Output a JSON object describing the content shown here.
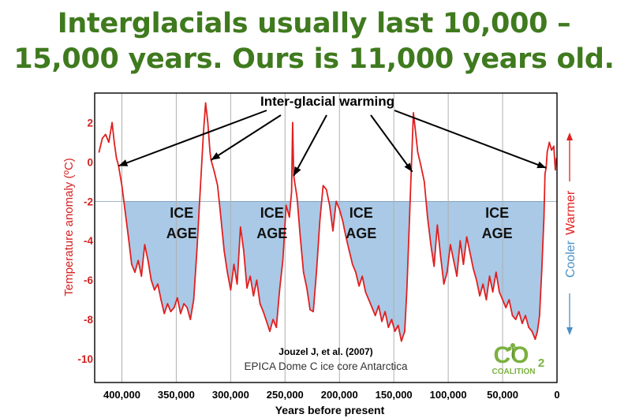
{
  "headline": {
    "line1": "Interglacials usually last 10,000 –",
    "line2": "15,000 years. Ours is 11,000 years old."
  },
  "colors": {
    "headline": "#3f7a1e",
    "series": "#e02020",
    "ice_fill": "#a9c9e6",
    "warmer_label": "#e02020",
    "cooler_label": "#4a90c4",
    "axis_labels": "#d42020",
    "logo_green": "#7ab040"
  },
  "annotations": {
    "warming": "Inter-glacial warming",
    "ice_age": [
      "ICE",
      "AGE"
    ],
    "citation": "Jouzel J, et al. (2007)",
    "source": "EPICA Dome C ice core Antarctica",
    "warmer": "Warmer",
    "cooler": "Cooler"
  },
  "logo": {
    "main": "CO",
    "sub": "2",
    "word": "COALITION"
  },
  "chart_data": {
    "type": "line",
    "title": "",
    "xlabel": "Years before present",
    "ylabel": "Temperature anomaly (ºC)",
    "xlim": [
      425000,
      0
    ],
    "ylim": [
      -11.2,
      3.5
    ],
    "x_ticks": [
      400000,
      350000,
      300000,
      250000,
      200000,
      150000,
      100000,
      50000,
      0
    ],
    "x_tick_labels": [
      "400,000",
      "350,000",
      "300,000",
      "250,000",
      "200,000",
      "150,000",
      "100,000",
      "50,000",
      "0"
    ],
    "y_ticks": [
      2,
      0,
      -2,
      -4,
      -6,
      -8,
      -10
    ],
    "y_tick_labels": [
      "2",
      "0",
      "-2",
      "-4",
      "-6",
      "-8",
      "-10"
    ],
    "grid": "vertical",
    "ice_age_threshold": -2,
    "ice_age_label_positions": [
      345000,
      262000,
      180000,
      55000
    ],
    "arrow_targets": [
      [
        403000,
        -0.2
      ],
      [
        318000,
        0.1
      ],
      [
        242000,
        -0.7
      ],
      [
        133000,
        -0.5
      ],
      [
        10000,
        -0.3
      ]
    ],
    "series": [
      {
        "values": [
          [
            421000,
            0.5
          ],
          [
            418000,
            1.2
          ],
          [
            415000,
            1.4
          ],
          [
            412000,
            1.0
          ],
          [
            409000,
            2.0
          ],
          [
            407000,
            1.0
          ],
          [
            405000,
            0.2
          ],
          [
            403000,
            -0.2
          ],
          [
            400000,
            -1.2
          ],
          [
            397000,
            -2.5
          ],
          [
            394000,
            -3.8
          ],
          [
            391000,
            -5.2
          ],
          [
            388000,
            -5.6
          ],
          [
            385000,
            -5.0
          ],
          [
            382000,
            -5.8
          ],
          [
            379000,
            -4.2
          ],
          [
            376000,
            -5.0
          ],
          [
            373000,
            -6.0
          ],
          [
            370000,
            -6.5
          ],
          [
            367000,
            -6.2
          ],
          [
            364000,
            -7.0
          ],
          [
            361000,
            -7.7
          ],
          [
            358000,
            -7.2
          ],
          [
            355000,
            -7.6
          ],
          [
            352000,
            -7.4
          ],
          [
            349000,
            -6.9
          ],
          [
            346000,
            -7.7
          ],
          [
            343000,
            -7.2
          ],
          [
            340000,
            -7.4
          ],
          [
            337000,
            -8.0
          ],
          [
            334000,
            -7.0
          ],
          [
            331000,
            -4.5
          ],
          [
            328000,
            -1.5
          ],
          [
            325000,
            1.5
          ],
          [
            323000,
            3.0
          ],
          [
            321000,
            2.0
          ],
          [
            319000,
            0.5
          ],
          [
            318000,
            0.1
          ],
          [
            315000,
            -0.5
          ],
          [
            312000,
            -1.2
          ],
          [
            309000,
            -2.8
          ],
          [
            306000,
            -4.5
          ],
          [
            303000,
            -5.6
          ],
          [
            300000,
            -6.5
          ],
          [
            297000,
            -5.2
          ],
          [
            294000,
            -6.2
          ],
          [
            291000,
            -3.3
          ],
          [
            288000,
            -4.5
          ],
          [
            285000,
            -6.4
          ],
          [
            282000,
            -5.8
          ],
          [
            279000,
            -6.8
          ],
          [
            276000,
            -6.0
          ],
          [
            273000,
            -7.2
          ],
          [
            270000,
            -7.6
          ],
          [
            267000,
            -8.1
          ],
          [
            264000,
            -8.6
          ],
          [
            261000,
            -8.0
          ],
          [
            258000,
            -8.4
          ],
          [
            255000,
            -6.5
          ],
          [
            252000,
            -5.0
          ],
          [
            249000,
            -2.2
          ],
          [
            246000,
            -2.8
          ],
          [
            244000,
            -1.5
          ],
          [
            243000,
            2.0
          ],
          [
            242000,
            -0.7
          ],
          [
            239000,
            -1.8
          ],
          [
            236000,
            -3.8
          ],
          [
            233000,
            -5.6
          ],
          [
            230000,
            -6.4
          ],
          [
            227000,
            -7.5
          ],
          [
            224000,
            -7.6
          ],
          [
            221000,
            -5.5
          ],
          [
            218000,
            -3.0
          ],
          [
            215000,
            -1.2
          ],
          [
            212000,
            -1.4
          ],
          [
            209000,
            -2.2
          ],
          [
            206000,
            -3.5
          ],
          [
            203000,
            -2.0
          ],
          [
            200000,
            -2.4
          ],
          [
            197000,
            -3.0
          ],
          [
            194000,
            -3.8
          ],
          [
            191000,
            -4.5
          ],
          [
            188000,
            -5.2
          ],
          [
            185000,
            -5.6
          ],
          [
            182000,
            -6.3
          ],
          [
            179000,
            -5.8
          ],
          [
            176000,
            -6.6
          ],
          [
            173000,
            -7.0
          ],
          [
            170000,
            -7.4
          ],
          [
            167000,
            -7.8
          ],
          [
            164000,
            -7.3
          ],
          [
            161000,
            -8.1
          ],
          [
            158000,
            -7.6
          ],
          [
            155000,
            -8.4
          ],
          [
            152000,
            -8.0
          ],
          [
            149000,
            -8.6
          ],
          [
            146000,
            -8.3
          ],
          [
            143000,
            -9.1
          ],
          [
            140000,
            -8.6
          ],
          [
            138000,
            -6.5
          ],
          [
            136000,
            -3.5
          ],
          [
            134000,
            -0.5
          ],
          [
            132000,
            2.5
          ],
          [
            130000,
            1.5
          ],
          [
            128000,
            0.5
          ],
          [
            125000,
            -0.2
          ],
          [
            122000,
            -1.0
          ],
          [
            119000,
            -2.8
          ],
          [
            116000,
            -4.2
          ],
          [
            113000,
            -5.3
          ],
          [
            110000,
            -3.2
          ],
          [
            107000,
            -4.8
          ],
          [
            104000,
            -6.2
          ],
          [
            101000,
            -5.6
          ],
          [
            98000,
            -4.2
          ],
          [
            95000,
            -5.0
          ],
          [
            92000,
            -5.8
          ],
          [
            89000,
            -4.0
          ],
          [
            86000,
            -5.2
          ],
          [
            83000,
            -3.8
          ],
          [
            80000,
            -4.6
          ],
          [
            77000,
            -5.4
          ],
          [
            74000,
            -6.0
          ],
          [
            71000,
            -6.8
          ],
          [
            68000,
            -6.2
          ],
          [
            65000,
            -7.0
          ],
          [
            62000,
            -5.8
          ],
          [
            59000,
            -6.6
          ],
          [
            56000,
            -5.6
          ],
          [
            53000,
            -6.6
          ],
          [
            50000,
            -7.0
          ],
          [
            47000,
            -7.4
          ],
          [
            44000,
            -7.0
          ],
          [
            41000,
            -7.8
          ],
          [
            38000,
            -8.0
          ],
          [
            35000,
            -7.6
          ],
          [
            32000,
            -8.2
          ],
          [
            29000,
            -7.8
          ],
          [
            26000,
            -8.4
          ],
          [
            23000,
            -8.6
          ],
          [
            20000,
            -9.0
          ],
          [
            18000,
            -8.6
          ],
          [
            16000,
            -7.8
          ],
          [
            14000,
            -5.5
          ],
          [
            12000,
            -2.8
          ],
          [
            11000,
            -0.6
          ],
          [
            10000,
            -0.3
          ],
          [
            9000,
            0.5
          ],
          [
            7000,
            1.0
          ],
          [
            5000,
            0.6
          ],
          [
            3000,
            0.8
          ],
          [
            1500,
            -0.4
          ],
          [
            500,
            0.2
          ]
        ]
      }
    ]
  }
}
